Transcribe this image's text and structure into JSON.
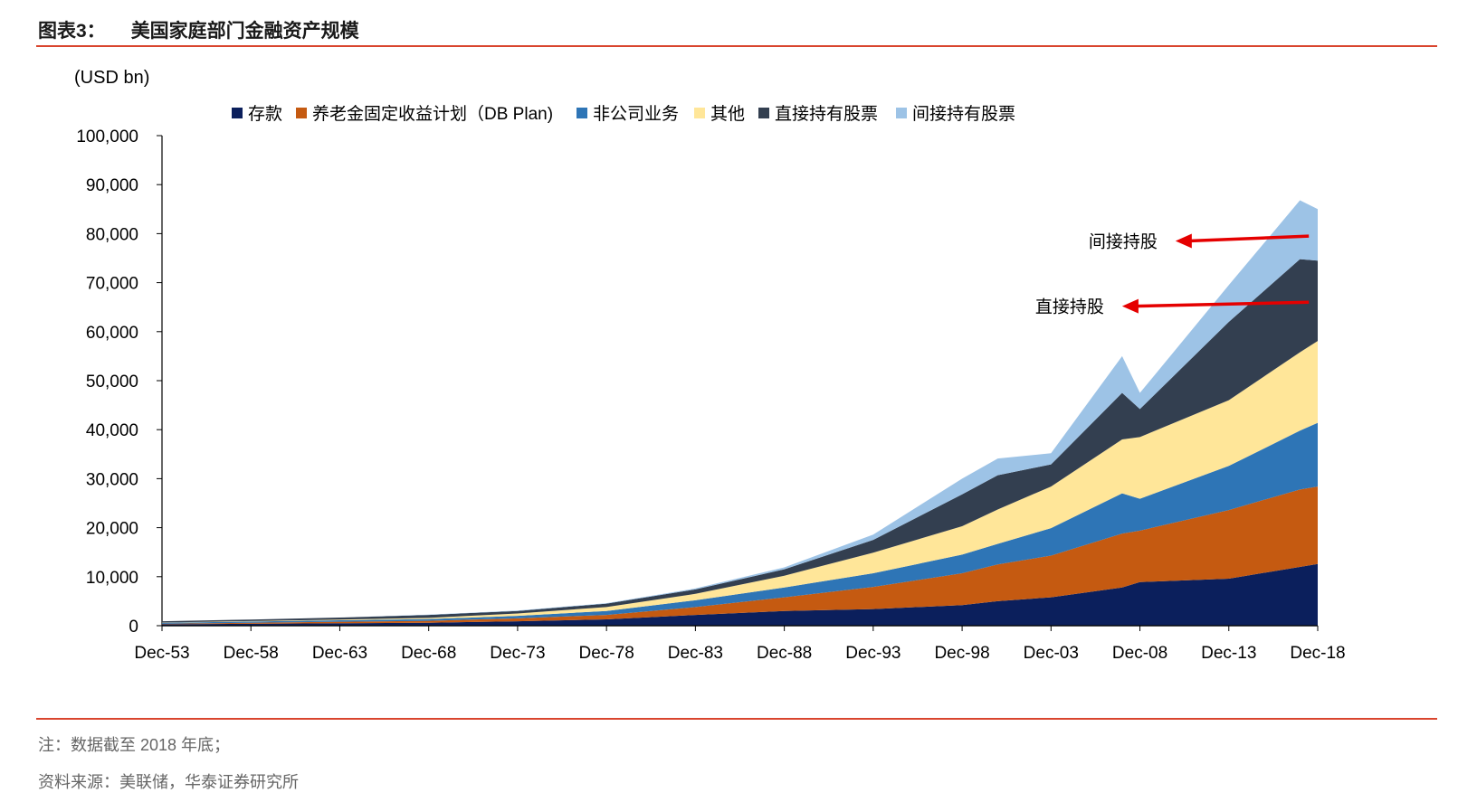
{
  "header": {
    "title": "图表3：",
    "subtitle": "美国家庭部门金融资产规模"
  },
  "footer": {
    "note": "注：数据截至 2018 年底；",
    "source": "资料来源：美联储，华泰证券研究所"
  },
  "colors": {
    "deposits": "#0b1f5c",
    "db_plan": "#c55a11",
    "noncorp_business": "#2e75b6",
    "other": "#ffe699",
    "direct_equity": "#333f50",
    "indirect_equity": "#9dc3e6",
    "arrow": "#e50000",
    "rule": "#d9452e"
  },
  "chart_data": {
    "type": "area",
    "stacked": true,
    "unit_label": "(USD bn)",
    "x_ticks": [
      "Dec-53",
      "Dec-58",
      "Dec-63",
      "Dec-68",
      "Dec-73",
      "Dec-78",
      "Dec-83",
      "Dec-88",
      "Dec-93",
      "Dec-98",
      "Dec-03",
      "Dec-08",
      "Dec-13",
      "Dec-18"
    ],
    "x": [
      1953,
      1958,
      1963,
      1968,
      1973,
      1978,
      1983,
      1988,
      1993,
      1998,
      2000,
      2003,
      2007,
      2008,
      2013,
      2017,
      2018
    ],
    "ylim": [
      0,
      100000
    ],
    "y_ticks": [
      "0",
      "10,000",
      "20,000",
      "30,000",
      "40,000",
      "50,000",
      "60,000",
      "70,000",
      "80,000",
      "90,000",
      "100,000"
    ],
    "legend_position": "top",
    "series": [
      {
        "name": "存款",
        "color_key": "deposits",
        "values": [
          300,
          400,
          500,
          600,
          900,
          1300,
          2200,
          3000,
          3400,
          4200,
          5000,
          5800,
          7800,
          8900,
          9600,
          12000,
          12600
        ]
      },
      {
        "name": "养老金固定收益计划（DB Plan)",
        "color_key": "db_plan",
        "values": [
          100,
          200,
          300,
          400,
          600,
          900,
          1600,
          2800,
          4500,
          6500,
          7500,
          8500,
          11000,
          10500,
          14000,
          15800,
          15800
        ]
      },
      {
        "name": "非公司业务",
        "color_key": "noncorp_business",
        "values": [
          200,
          250,
          300,
          350,
          500,
          800,
          1400,
          2000,
          2800,
          3800,
          4200,
          5600,
          8200,
          6500,
          9000,
          12000,
          13000
        ]
      },
      {
        "name": "其他",
        "color_key": "other",
        "values": [
          50,
          100,
          150,
          250,
          500,
          800,
          1300,
          2400,
          4200,
          5800,
          7000,
          8500,
          11000,
          12600,
          13400,
          16000,
          16700
        ]
      },
      {
        "name": "直接持有股票",
        "color_key": "direct_equity",
        "values": [
          250,
          300,
          400,
          600,
          500,
          700,
          900,
          1300,
          2600,
          6500,
          7000,
          4500,
          9500,
          5700,
          16000,
          19000,
          16400
        ]
      },
      {
        "name": "间接持有股票",
        "color_key": "indirect_equity",
        "values": [
          0,
          0,
          0,
          50,
          100,
          100,
          200,
          400,
          1100,
          3200,
          3400,
          2300,
          7500,
          3300,
          7500,
          12000,
          10500
        ]
      }
    ],
    "annotations": [
      {
        "text": "间接持股",
        "series": "间接持有股票",
        "arrow_from_x": 2017.5,
        "arrow_to_x": 2010.0,
        "y_from": 79500,
        "y_to": 78500
      },
      {
        "text": "直接持股",
        "series": "直接持有股票",
        "arrow_from_x": 2017.5,
        "arrow_to_x": 2007.0,
        "y_from": 66000,
        "y_to": 65200
      }
    ]
  }
}
